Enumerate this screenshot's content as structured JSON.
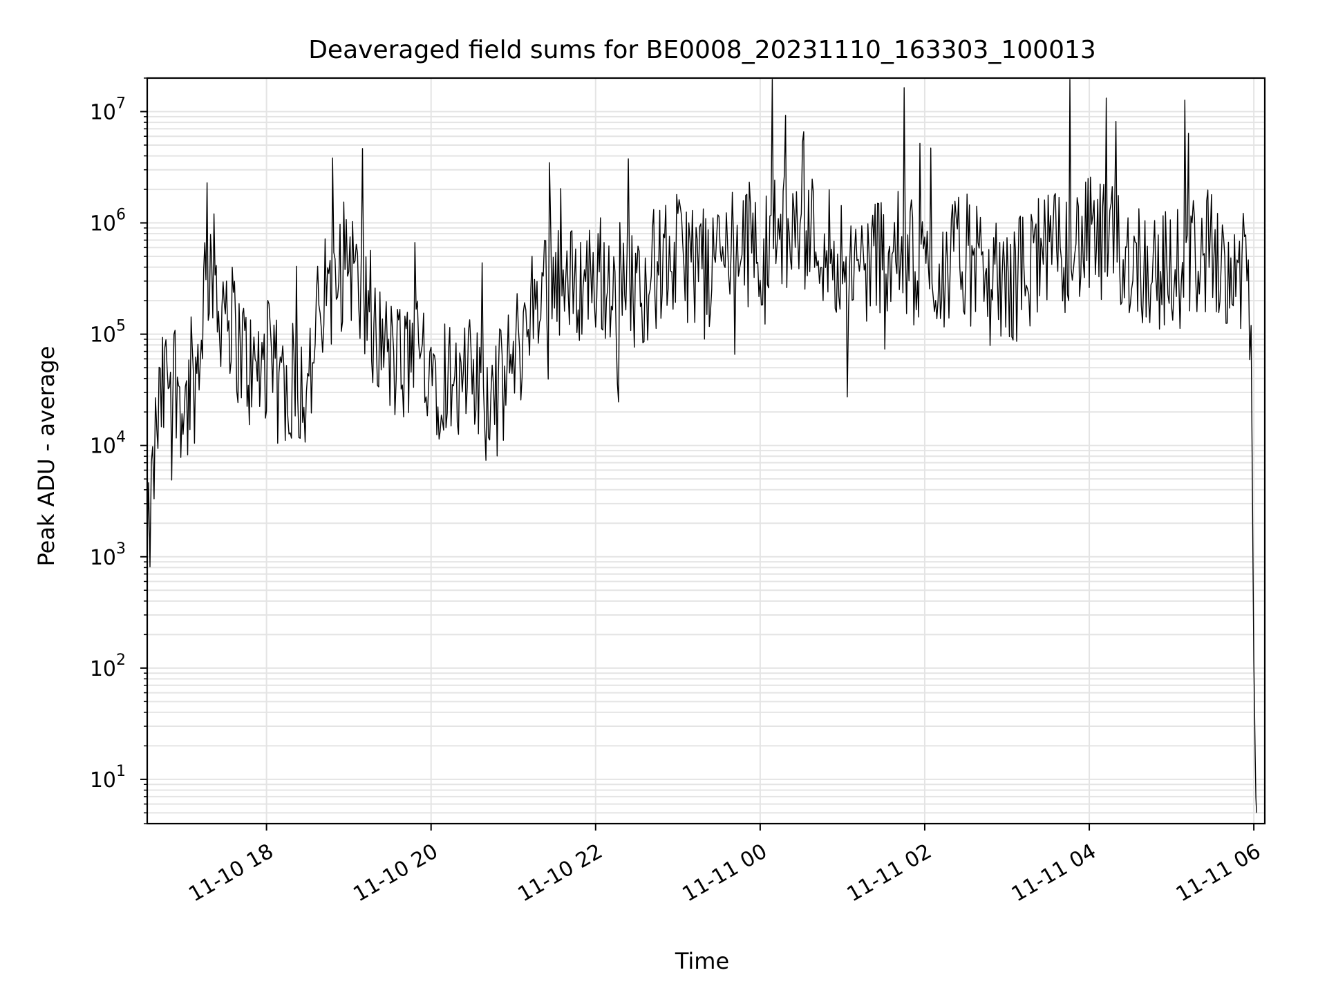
{
  "chart_data": {
    "type": "line",
    "title": "Deaveraged field sums for BE0008_20231110_163303_100013",
    "xlabel": "Time",
    "ylabel": "Peak ADU - average",
    "x_scale": "time",
    "y_scale": "log",
    "xlim": [
      "2023-11-10 16:33",
      "2023-11-11 06:08"
    ],
    "ylim": [
      4,
      20000000
    ],
    "grid": true,
    "x_ticks": [
      {
        "value": "2023-11-10 18:00",
        "label": "11-10 18"
      },
      {
        "value": "2023-11-10 20:00",
        "label": "11-10 20"
      },
      {
        "value": "2023-11-10 22:00",
        "label": "11-10 22"
      },
      {
        "value": "2023-11-11 00:00",
        "label": "11-11 00"
      },
      {
        "value": "2023-11-11 02:00",
        "label": "11-11 02"
      },
      {
        "value": "2023-11-11 04:00",
        "label": "11-11 04"
      },
      {
        "value": "2023-11-11 06:00",
        "label": "11-11 06"
      }
    ],
    "y_ticks": [
      {
        "value": 10,
        "base": "10",
        "exp": "1"
      },
      {
        "value": 100,
        "base": "10",
        "exp": "2"
      },
      {
        "value": 1000,
        "base": "10",
        "exp": "3"
      },
      {
        "value": 10000,
        "base": "10",
        "exp": "4"
      },
      {
        "value": 100000,
        "base": "10",
        "exp": "5"
      },
      {
        "value": 1000000,
        "base": "10",
        "exp": "6"
      },
      {
        "value": 10000000,
        "base": "10",
        "exp": "7"
      }
    ],
    "series": [
      {
        "color": "#000000",
        "x": [
          "2023-11-10 16:33",
          "2023-11-10 16:36",
          "2023-11-10 16:40",
          "2023-11-10 16:45",
          "2023-11-10 16:50",
          "2023-11-10 16:55",
          "2023-11-10 17:00",
          "2023-11-10 17:05",
          "2023-11-10 17:10",
          "2023-11-10 17:15",
          "2023-11-10 17:20",
          "2023-11-10 17:25",
          "2023-11-10 17:30",
          "2023-11-10 17:35",
          "2023-11-10 17:40",
          "2023-11-10 17:45",
          "2023-11-10 17:50",
          "2023-11-10 17:55",
          "2023-11-10 18:00",
          "2023-11-10 18:10",
          "2023-11-10 18:20",
          "2023-11-10 18:30",
          "2023-11-10 18:40",
          "2023-11-10 18:50",
          "2023-11-10 19:00",
          "2023-11-10 19:10",
          "2023-11-10 19:15",
          "2023-11-10 19:20",
          "2023-11-10 19:30",
          "2023-11-10 19:40",
          "2023-11-10 19:50",
          "2023-11-10 20:00",
          "2023-11-10 20:05",
          "2023-11-10 20:10",
          "2023-11-10 20:20",
          "2023-11-10 20:30",
          "2023-11-10 20:40",
          "2023-11-10 20:50",
          "2023-11-10 21:00",
          "2023-11-10 21:10",
          "2023-11-10 21:20",
          "2023-11-10 21:30",
          "2023-11-10 21:40",
          "2023-11-10 21:50",
          "2023-11-10 22:00",
          "2023-11-10 22:15",
          "2023-11-10 22:30",
          "2023-11-10 22:45",
          "2023-11-10 23:00",
          "2023-11-10 23:15",
          "2023-11-10 23:30",
          "2023-11-10 23:45",
          "2023-11-11 00:00",
          "2023-11-11 00:15",
          "2023-11-11 00:30",
          "2023-11-11 00:45",
          "2023-11-11 01:00",
          "2023-11-11 01:15",
          "2023-11-11 01:30",
          "2023-11-11 01:45",
          "2023-11-11 02:00",
          "2023-11-11 02:15",
          "2023-11-11 02:30",
          "2023-11-11 02:45",
          "2023-11-11 03:00",
          "2023-11-11 03:15",
          "2023-11-11 03:30",
          "2023-11-11 03:45",
          "2023-11-11 04:00",
          "2023-11-11 04:15",
          "2023-11-11 04:30",
          "2023-11-11 04:45",
          "2023-11-11 05:00",
          "2023-11-11 05:15",
          "2023-11-11 05:30",
          "2023-11-11 05:45",
          "2023-11-11 05:55",
          "2023-11-11 05:58",
          "2023-11-11 06:00",
          "2023-11-11 06:01",
          "2023-11-11 06:02"
        ],
        "y": [
          800,
          3000,
          15000,
          30000,
          50000,
          40000,
          20000,
          30000,
          50000,
          300000,
          500000,
          150000,
          250000,
          120000,
          80000,
          60000,
          40000,
          50000,
          60000,
          30000,
          40000,
          30000,
          200000,
          250000,
          600000,
          150000,
          200000,
          100000,
          60000,
          50000,
          80000,
          60000,
          40000,
          50000,
          30000,
          40000,
          25000,
          30000,
          60000,
          120000,
          300000,
          400000,
          250000,
          300000,
          350000,
          300000,
          250000,
          400000,
          500000,
          450000,
          500000,
          700000,
          600000,
          800000,
          900000,
          700000,
          500000,
          400000,
          600000,
          500000,
          350000,
          400000,
          500000,
          300000,
          250000,
          400000,
          500000,
          600000,
          700000,
          600000,
          500000,
          400000,
          350000,
          500000,
          600000,
          400000,
          300000,
          120000,
          100,
          10,
          5
        ]
      }
    ]
  }
}
